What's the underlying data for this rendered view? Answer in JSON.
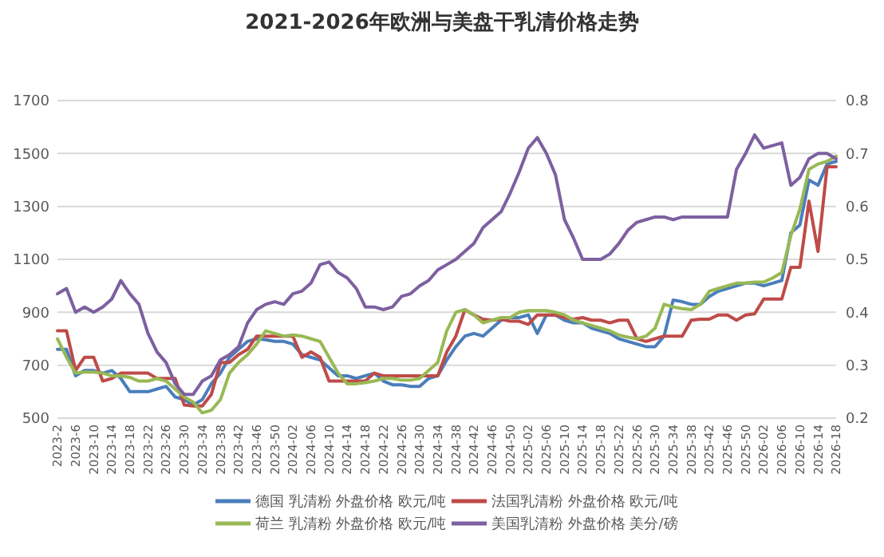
{
  "chart_data": {
    "type": "line",
    "title": "2021-2026年欧洲与美盘干乳清价格走势",
    "categories": [
      "2023-2",
      null,
      "2023-6",
      null,
      "2023-10",
      null,
      "2023-14",
      null,
      "2023-18",
      null,
      "2023-22",
      null,
      "2023-26",
      null,
      "2023-30",
      null,
      "2023-34",
      null,
      "2023-38",
      null,
      "2023-42",
      null,
      "2023-46",
      null,
      "2023-50",
      null,
      "2024-02",
      null,
      "2024-06",
      null,
      "2024-10",
      null,
      "2024-14",
      null,
      "2024-18",
      null,
      "2024-22",
      null,
      "2024-26",
      null,
      "2024-30",
      null,
      "2024-34",
      null,
      "2024-38",
      null,
      "2024-42",
      null,
      "2024-46",
      null,
      "2024-50",
      null,
      "2025-02",
      null,
      "2025-06",
      null,
      "2025-10",
      null,
      "2025-14",
      null,
      "2025-18",
      null,
      "2025-22",
      null,
      "2025-26",
      null,
      "2025-30",
      null,
      "2025-34",
      null,
      "2025-38",
      null,
      "2025-42",
      null,
      "2025-46",
      null,
      "2025-50",
      null,
      "2026-02",
      null,
      "2026-06",
      null,
      "2026-10",
      null,
      "2026-14",
      null,
      "2026-18"
    ],
    "series": [
      {
        "name": "德国 乳清粉 外盘价格 欧元/吨",
        "color": "#4a7ebb",
        "values": [
          760,
          760,
          660,
          680,
          680,
          670,
          680,
          650,
          600,
          600,
          600,
          610,
          620,
          580,
          570,
          550,
          570,
          630,
          670,
          730,
          760,
          790,
          800,
          796,
          790,
          790,
          780,
          740,
          730,
          720,
          690,
          660,
          660,
          650,
          660,
          670,
          640,
          626,
          626,
          620,
          620,
          650,
          660,
          720,
          770,
          810,
          820,
          810,
          840,
          870,
          880,
          880,
          890,
          820,
          890,
          890,
          870,
          860,
          860,
          840,
          830,
          820,
          800,
          790,
          780,
          770,
          770,
          810,
          946,
          940,
          930,
          930,
          960,
          980,
          990,
          1000,
          1010,
          1010,
          1000,
          1010,
          1020,
          1200,
          1230,
          1400,
          1380,
          1460,
          1470
        ]
      },
      {
        "name": "法国乳清粉 外盘价格 欧元/吨",
        "color": "#be4b48",
        "values": [
          830,
          830,
          680,
          730,
          730,
          640,
          650,
          670,
          670,
          670,
          670,
          650,
          650,
          650,
          550,
          546,
          546,
          590,
          710,
          710,
          740,
          760,
          810,
          810,
          810,
          810,
          810,
          730,
          750,
          730,
          640,
          640,
          640,
          640,
          640,
          670,
          660,
          660,
          660,
          660,
          660,
          660,
          660,
          750,
          810,
          910,
          890,
          874,
          870,
          874,
          866,
          866,
          854,
          890,
          890,
          890,
          880,
          874,
          880,
          870,
          870,
          860,
          870,
          870,
          800,
          790,
          800,
          810,
          810,
          810,
          870,
          874,
          874,
          890,
          890,
          870,
          890,
          894,
          950,
          950,
          950,
          1070,
          1070,
          1320,
          1130,
          1450,
          1450
        ]
      },
      {
        "name": "荷兰 乳清粉 外盘价格 欧元/吨",
        "color": "#98b954",
        "values": [
          800,
          730,
          670,
          674,
          674,
          670,
          660,
          660,
          654,
          640,
          640,
          650,
          640,
          610,
          580,
          560,
          520,
          530,
          570,
          670,
          710,
          740,
          780,
          830,
          820,
          810,
          814,
          810,
          800,
          790,
          730,
          670,
          630,
          630,
          634,
          640,
          650,
          650,
          644,
          644,
          650,
          680,
          710,
          830,
          900,
          910,
          890,
          860,
          870,
          880,
          880,
          900,
          906,
          906,
          906,
          900,
          890,
          870,
          860,
          850,
          840,
          830,
          814,
          806,
          800,
          810,
          840,
          930,
          920,
          914,
          910,
          930,
          980,
          990,
          1000,
          1010,
          1010,
          1014,
          1014,
          1030,
          1050,
          1190,
          1290,
          1440,
          1460,
          1470,
          1490
        ]
      },
      {
        "name": "美国乳清粉 外盘价格 美分/磅",
        "color": "#7d60a0",
        "axis": "y2",
        "values": [
          0.435,
          0.445,
          0.4,
          0.41,
          0.4,
          0.41,
          0.425,
          0.46,
          0.435,
          0.415,
          0.36,
          0.325,
          0.305,
          0.265,
          0.245,
          0.245,
          0.27,
          0.28,
          0.31,
          0.32,
          0.335,
          0.38,
          0.405,
          0.415,
          0.42,
          0.415,
          0.435,
          0.44,
          0.455,
          0.49,
          0.495,
          0.475,
          0.465,
          0.445,
          0.41,
          0.41,
          0.405,
          0.41,
          0.43,
          0.435,
          0.45,
          0.46,
          0.48,
          0.49,
          0.5,
          0.515,
          0.53,
          0.56,
          0.575,
          0.59,
          0.625,
          0.665,
          0.71,
          0.73,
          0.7,
          0.66,
          0.575,
          0.54,
          0.5,
          0.5,
          0.5,
          0.51,
          0.53,
          0.555,
          0.57,
          0.575,
          0.58,
          0.58,
          0.575,
          0.58,
          0.58,
          0.58,
          0.58,
          0.58,
          0.58,
          0.67,
          0.7,
          0.735,
          0.71,
          0.715,
          0.72,
          0.64,
          0.655,
          0.69,
          0.7,
          0.7,
          0.69
        ]
      }
    ],
    "ylim": [
      500,
      1700
    ],
    "yticks": [
      500,
      700,
      900,
      1100,
      1300,
      1500,
      1700
    ],
    "y2lim": [
      0.2,
      0.8
    ],
    "y2ticks": [
      0.2,
      0.3,
      0.4,
      0.5,
      0.6,
      0.7,
      0.8
    ],
    "grid": "y",
    "legend": "bottom",
    "marker": "none",
    "line_style": "solid"
  }
}
